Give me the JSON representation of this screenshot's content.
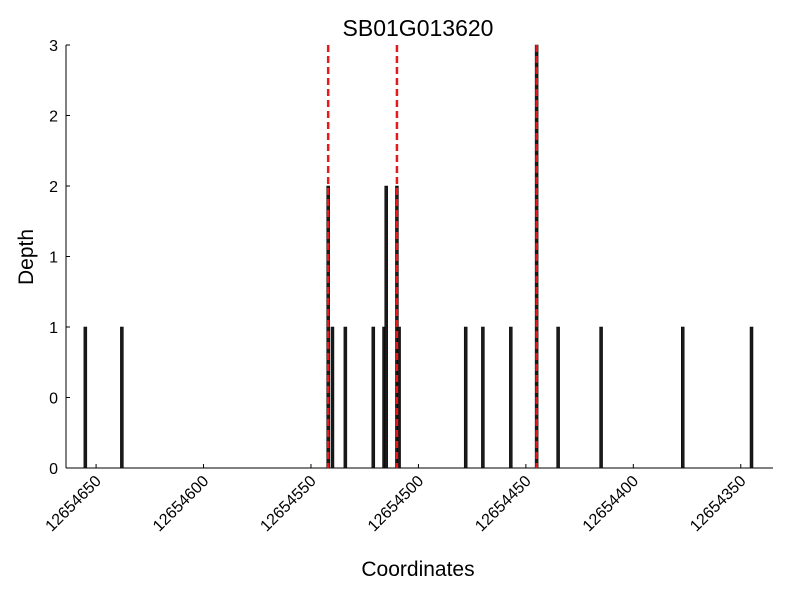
{
  "chart_data": {
    "type": "bar",
    "title": "SB01G013620",
    "xlabel": "Coordinates",
    "ylabel": "Depth",
    "x": [
      12654655,
      12654638,
      12654542,
      12654540,
      12654534,
      12654521,
      12654516,
      12654515,
      12654510,
      12654509,
      12654478,
      12654470,
      12654457,
      12654445,
      12654435,
      12654415,
      12654377,
      12654345
    ],
    "values": [
      1,
      1,
      2,
      1,
      1,
      1,
      1,
      2,
      2,
      1,
      1,
      1,
      1,
      3,
      1,
      1,
      1,
      1
    ],
    "color": "#1a1a1a",
    "vlines": [
      12654542,
      12654510,
      12654445
    ],
    "vline_color": "#e41a1c",
    "xlim": [
      12654664,
      12654335
    ],
    "xticks": [
      12654650,
      12654600,
      12654550,
      12654500,
      12654450,
      12654400,
      12654350
    ],
    "ylim": [
      0,
      3
    ],
    "yticks": [
      0,
      {
        "value": 0.5,
        "label": "0"
      },
      1,
      {
        "value": 1.5,
        "label": "1"
      },
      2,
      {
        "value": 2.5,
        "label": "2"
      },
      3
    ]
  }
}
